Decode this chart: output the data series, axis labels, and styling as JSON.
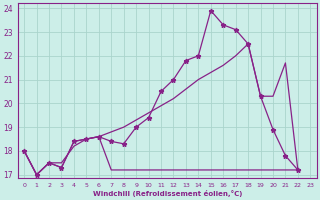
{
  "xlabel": "Windchill (Refroidissement éolien,°C)",
  "bg_color": "#cceee8",
  "grid_color": "#aad4cc",
  "line_color": "#882288",
  "xlim": [
    -0.5,
    23.5
  ],
  "ylim": [
    16.85,
    24.2
  ],
  "xticks": [
    0,
    1,
    2,
    3,
    4,
    5,
    6,
    7,
    8,
    9,
    10,
    11,
    12,
    13,
    14,
    15,
    16,
    17,
    18,
    19,
    20,
    21,
    22,
    23
  ],
  "yticks": [
    17,
    18,
    19,
    20,
    21,
    22,
    23,
    24
  ],
  "line_zigzag_x": [
    0,
    1,
    2,
    3,
    4,
    5,
    6,
    7,
    8,
    9,
    10,
    11,
    12,
    13,
    14,
    15,
    16,
    17,
    18,
    19,
    20,
    21,
    22
  ],
  "line_zigzag_y": [
    18.0,
    17.0,
    17.5,
    17.3,
    18.4,
    18.5,
    18.6,
    18.4,
    18.3,
    19.0,
    19.4,
    20.5,
    21.0,
    21.8,
    22.0,
    23.9,
    23.3,
    23.1,
    22.5,
    20.3,
    18.9,
    17.8,
    17.2
  ],
  "line_diag_x": [
    0,
    1,
    2,
    3,
    4,
    5,
    6,
    7,
    8,
    9,
    10,
    11,
    12,
    13,
    14,
    15,
    16,
    17,
    18,
    19,
    20,
    21,
    22
  ],
  "line_diag_y": [
    18.0,
    17.0,
    17.5,
    17.5,
    18.2,
    18.5,
    18.6,
    18.8,
    19.0,
    19.3,
    19.6,
    19.9,
    20.2,
    20.6,
    21.0,
    21.3,
    21.6,
    22.0,
    22.5,
    20.3,
    20.3,
    21.7,
    17.2
  ],
  "line_flat_x": [
    0,
    1,
    2,
    3,
    4,
    5,
    6,
    7,
    8,
    9,
    10,
    11,
    12,
    13,
    14,
    15,
    16,
    17,
    18,
    19,
    20,
    21,
    22
  ],
  "line_flat_y": [
    18.0,
    17.0,
    17.5,
    17.3,
    18.4,
    18.5,
    18.6,
    17.2,
    17.2,
    17.2,
    17.2,
    17.2,
    17.2,
    17.2,
    17.2,
    17.2,
    17.2,
    17.2,
    17.2,
    17.2,
    17.2,
    17.2,
    17.2
  ]
}
